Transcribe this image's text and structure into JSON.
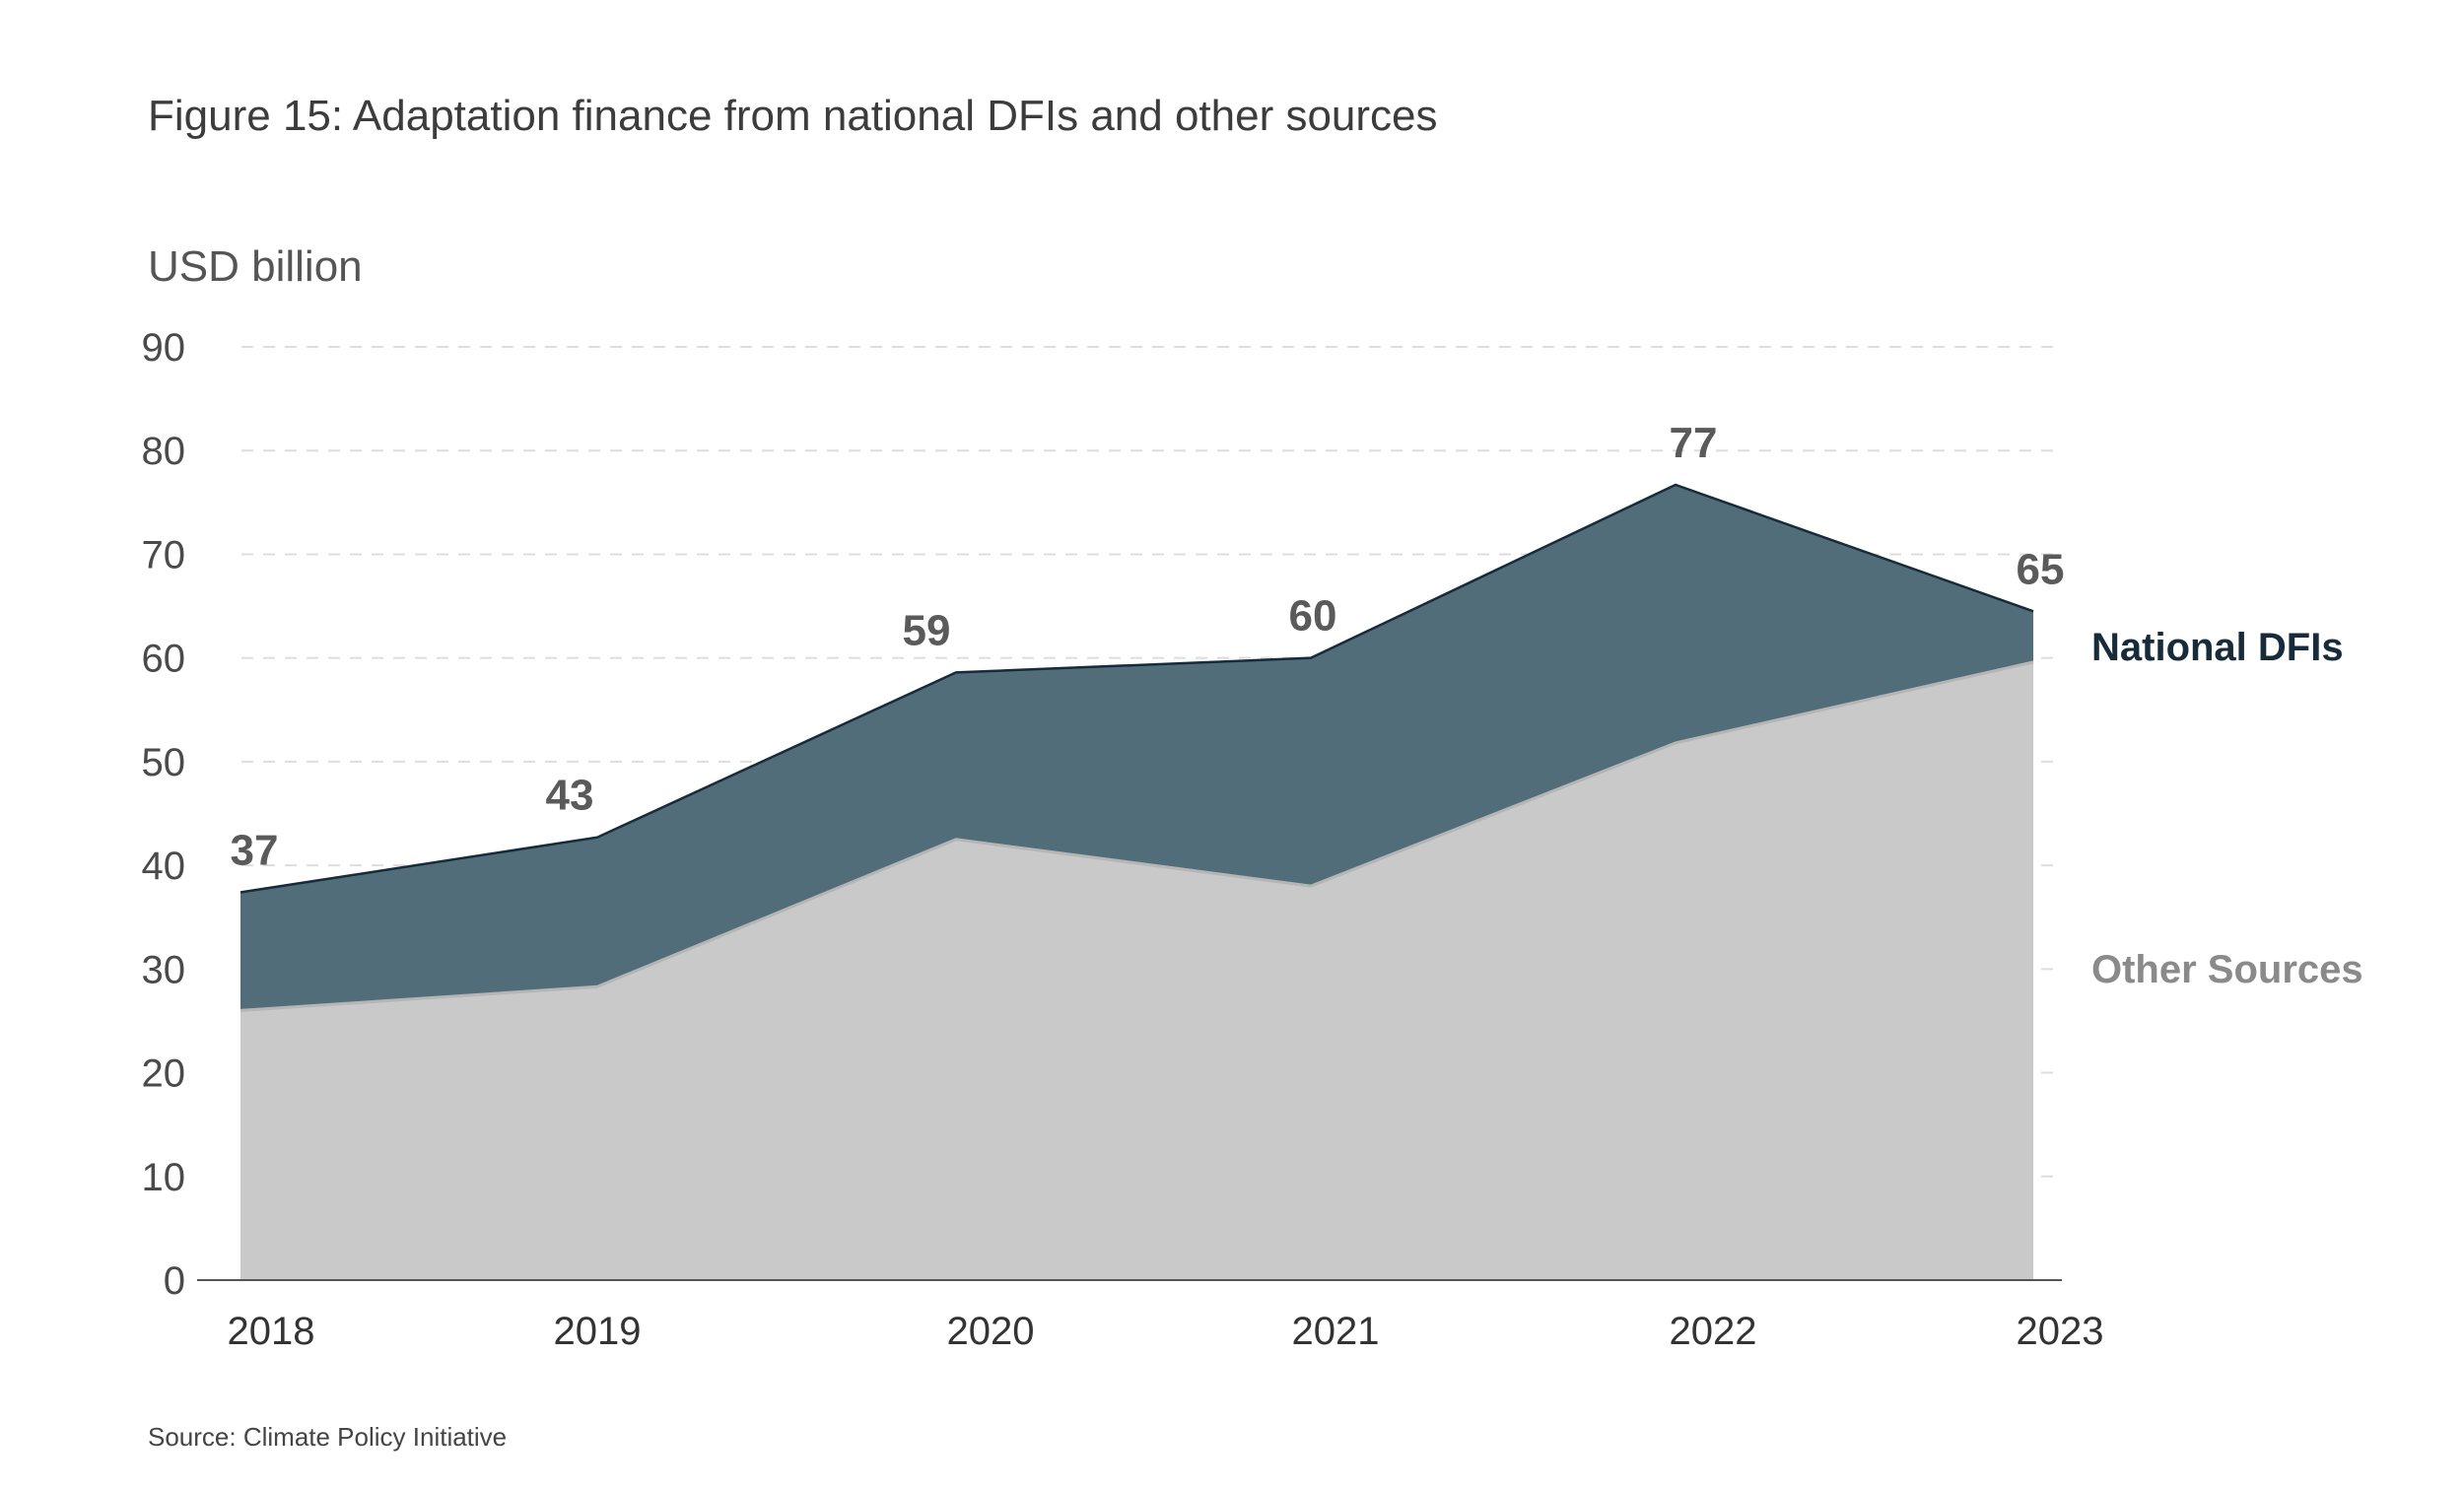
{
  "chart_data": {
    "type": "area",
    "title": "Figure 15: Adaptation finance from national DFIs and other sources",
    "ylabel": "USD billion",
    "xlabel": "",
    "categories": [
      "2018",
      "2019",
      "2020",
      "2021",
      "2022",
      "2023"
    ],
    "ylim": [
      0,
      90
    ],
    "yticks": [
      "0",
      "10",
      "20",
      "30",
      "40",
      "50",
      "60",
      "70",
      "80",
      "90"
    ],
    "stacked": true,
    "grid": true,
    "series": [
      {
        "name": "Other Sources",
        "values": [
          26,
          28.3,
          42.5,
          38,
          51.8,
          59.6
        ],
        "color": "#c9c9c9"
      },
      {
        "name": "National DFIs",
        "values": [
          11.4,
          14.4,
          16.1,
          22,
          24.9,
          4.9
        ],
        "color": "#516d79"
      }
    ],
    "totals": [
      37.4,
      42.7,
      58.6,
      60,
      76.7,
      64.5
    ],
    "total_labels": [
      "37",
      "43",
      "59",
      "60",
      "77",
      "65"
    ],
    "source": "Source: Climate Policy Initiative"
  },
  "colors": {
    "dfi_fill": "#516d79",
    "dfi_line": "#172b3a",
    "other_fill": "#c9c9c9",
    "other_line": "#b5b5b5"
  }
}
